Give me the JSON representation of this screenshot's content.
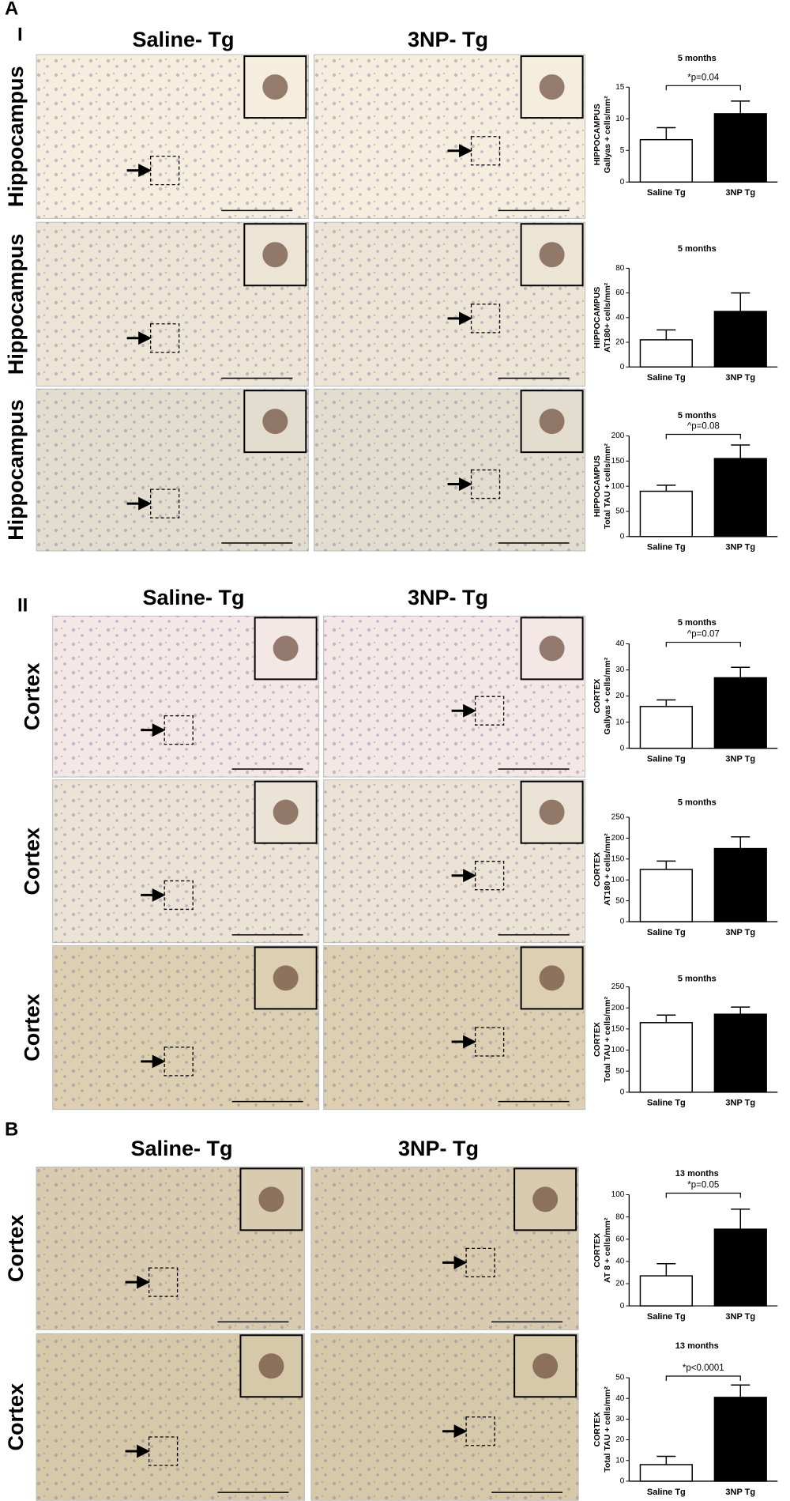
{
  "figure": {
    "panel_labels": [
      "A",
      "I",
      "II",
      "B"
    ],
    "column_headers": [
      [
        "Saline- Tg",
        "3NP- Tg"
      ],
      [
        "Saline- Tg",
        "3NP- Tg"
      ],
      [
        "Saline- Tg",
        "3NP- Tg"
      ]
    ],
    "row_labels": [
      "Hippocampus",
      "Hippocampus",
      "Hippocampus",
      "Cortex",
      "Cortex",
      "Cortex",
      "Cortex",
      "Cortex"
    ]
  },
  "chart_data": [
    {
      "type": "bar",
      "title": "5 months",
      "ylabel": [
        "HIPPOCAMPUS",
        "Gallyas + cells/mm²"
      ],
      "categories": [
        "Saline Tg",
        "3NP Tg"
      ],
      "values": [
        6.7,
        10.8
      ],
      "errors": [
        1.9,
        2.0
      ],
      "colors": [
        "#ffffff",
        "#000000"
      ],
      "ylim": [
        0,
        15
      ],
      "yticks": [
        0,
        5,
        10,
        15
      ],
      "annotation": "*p=0.04"
    },
    {
      "type": "bar",
      "title": "5 months",
      "ylabel": [
        "HIPPOCAMPUS",
        "AT180+ cells/mm²"
      ],
      "categories": [
        "Saline Tg",
        "3NP Tg"
      ],
      "values": [
        22,
        45
      ],
      "errors": [
        8,
        15
      ],
      "colors": [
        "#ffffff",
        "#000000"
      ],
      "ylim": [
        0,
        80
      ],
      "yticks": [
        0,
        20,
        40,
        60,
        80
      ]
    },
    {
      "type": "bar",
      "title": "5 months",
      "ylabel": [
        "HIPPOCAMPUS",
        "Total TAU + cells/mm²"
      ],
      "categories": [
        "Saline Tg",
        "3NP Tg"
      ],
      "values": [
        90,
        155
      ],
      "errors": [
        12,
        27
      ],
      "colors": [
        "#ffffff",
        "#000000"
      ],
      "ylim": [
        0,
        200
      ],
      "yticks": [
        0,
        50,
        100,
        150,
        200
      ],
      "annotation": "^p=0.08"
    },
    {
      "type": "bar",
      "title": "5 months",
      "ylabel": [
        "CORTEX",
        "Gallyas + cells/mm²"
      ],
      "categories": [
        "Saline Tg",
        "3NP Tg"
      ],
      "values": [
        16,
        27
      ],
      "errors": [
        2.5,
        4
      ],
      "colors": [
        "#ffffff",
        "#000000"
      ],
      "ylim": [
        0,
        40
      ],
      "yticks": [
        0,
        10,
        20,
        30,
        40
      ],
      "annotation": "^p=0.07"
    },
    {
      "type": "bar",
      "title": "5 months",
      "ylabel": [
        "CORTEX",
        "AT180 + cells/mm²"
      ],
      "categories": [
        "Saline Tg",
        "3NP Tg"
      ],
      "values": [
        125,
        175
      ],
      "errors": [
        20,
        28
      ],
      "colors": [
        "#ffffff",
        "#000000"
      ],
      "ylim": [
        0,
        250
      ],
      "yticks": [
        0,
        50,
        100,
        150,
        200,
        250
      ]
    },
    {
      "type": "bar",
      "title": "5 months",
      "ylabel": [
        "CORTEX",
        "Total TAU + cells/mm²"
      ],
      "categories": [
        "Saline Tg",
        "3NP Tg"
      ],
      "values": [
        165,
        185
      ],
      "errors": [
        18,
        17
      ],
      "colors": [
        "#ffffff",
        "#000000"
      ],
      "ylim": [
        0,
        250
      ],
      "yticks": [
        0,
        50,
        100,
        150,
        200,
        250
      ]
    },
    {
      "type": "bar",
      "title": "13 months",
      "ylabel": [
        "CORTEX",
        "AT 8 + cells/mm²"
      ],
      "categories": [
        "Saline Tg",
        "3NP Tg"
      ],
      "values": [
        27,
        69
      ],
      "errors": [
        11,
        18
      ],
      "colors": [
        "#ffffff",
        "#000000"
      ],
      "ylim": [
        0,
        100
      ],
      "yticks": [
        0,
        20,
        40,
        60,
        80,
        100
      ],
      "annotation": "*p=0.05"
    },
    {
      "type": "bar",
      "title": "13 months",
      "ylabel": [
        "CORTEX",
        "Total TAU + cells/mm²"
      ],
      "categories": [
        "Saline Tg",
        "3NP Tg"
      ],
      "values": [
        8,
        40.5
      ],
      "errors": [
        4,
        6
      ],
      "colors": [
        "#ffffff",
        "#000000"
      ],
      "ylim": [
        0,
        50
      ],
      "yticks": [
        0,
        10,
        20,
        30,
        40,
        50
      ],
      "annotation": "*p<0.0001"
    }
  ]
}
